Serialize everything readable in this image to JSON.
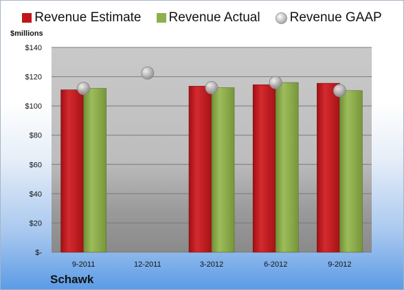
{
  "chart_data": {
    "type": "bar",
    "categories": [
      "9-2011",
      "12-2011",
      "3-2012",
      "6-2012",
      "9-2012"
    ],
    "series": [
      {
        "name": "Revenue Estimate",
        "type": "bar",
        "color": "#c0161b",
        "values": [
          111,
          null,
          113.5,
          114.5,
          115.5
        ]
      },
      {
        "name": "Revenue Actual",
        "type": "bar",
        "color": "#8fb04f",
        "values": [
          112,
          null,
          112.5,
          116,
          110.5
        ]
      },
      {
        "name": "Revenue GAAP",
        "type": "scatter",
        "color": "#b8b8b8",
        "values": [
          112,
          122.5,
          112.5,
          116,
          110.5
        ]
      }
    ],
    "ylabel": "$millions",
    "ylim": [
      0,
      140
    ],
    "yticks": [
      0,
      20,
      40,
      60,
      80,
      100,
      120,
      140
    ],
    "ytick_labels": [
      "$-",
      "$20",
      "$40",
      "$60",
      "$80",
      "$100",
      "$120",
      "$140"
    ],
    "grid": true,
    "legend_position": "top"
  },
  "company": "Schawk"
}
